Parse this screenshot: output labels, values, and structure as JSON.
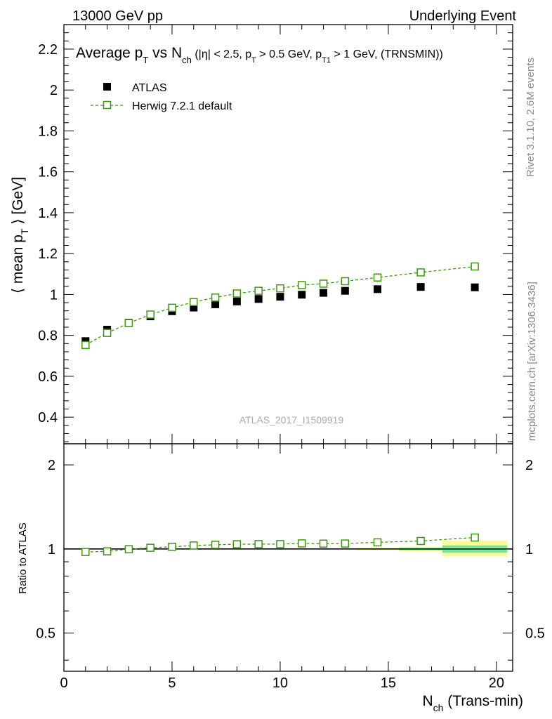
{
  "header": {
    "energy_label": "13000 GeV pp",
    "process_label": "Underlying Event"
  },
  "side_text": {
    "rivet_label": "Rivet 3.1.10,  2.6M events",
    "mcplots_label": "mcplots.cern.ch [arXiv:1306.3436]"
  },
  "analysis_id": "ATLAS_2017_I1509919",
  "colors": {
    "data": "#000000",
    "mc": "#3a9a0a",
    "band_inner": "#7ee89a",
    "band_outer": "#fbf89a"
  },
  "chart_data": [
    {
      "type": "scatter",
      "panel": "main",
      "title_parts": {
        "pre": "Average p",
        "pre_sub": "T",
        "mid": " vs N",
        "mid_sub": "ch",
        "cuts_a": " (|η| < 2.5, p",
        "cuts_a_sub": "T",
        "cuts_b": " > 0.5 GeV, p",
        "cuts_b_sub": "T1",
        "cuts_c": " > 1 GeV, (TRNSMIN))"
      },
      "ylabel_parts": {
        "pre": "⟨ mean p",
        "sub": "T",
        "post": " ⟩ [GeV]"
      },
      "xlim": [
        0,
        20.75
      ],
      "ylim": [
        0.27,
        2.32
      ],
      "yticks": [
        "0.4",
        "0.6",
        "0.8",
        "1",
        "1.2",
        "1.4",
        "1.6",
        "1.8",
        "2",
        "2.2"
      ],
      "legend_position": "top-left",
      "series": [
        {
          "name": "ATLAS",
          "marker": "filled-square",
          "x": [
            1,
            2,
            3,
            4,
            5,
            6,
            7,
            8,
            9,
            10,
            11,
            12,
            13,
            14.5,
            16.5,
            19
          ],
          "y": [
            0.772,
            0.828,
            0.862,
            0.893,
            0.918,
            0.936,
            0.952,
            0.966,
            0.978,
            0.989,
            0.999,
            1.008,
            1.018,
            1.026,
            1.037,
            1.035
          ]
        },
        {
          "name": "Herwig 7.2.1 default",
          "marker": "open-square-dashed-line",
          "x": [
            1,
            2,
            3,
            4,
            5,
            6,
            7,
            8,
            9,
            10,
            11,
            12,
            13,
            14.5,
            16.5,
            19
          ],
          "y": [
            0.753,
            0.812,
            0.86,
            0.902,
            0.935,
            0.963,
            0.985,
            1.005,
            1.018,
            1.03,
            1.046,
            1.053,
            1.065,
            1.083,
            1.108,
            1.137
          ]
        }
      ]
    },
    {
      "type": "line",
      "panel": "ratio",
      "ylabel": "Ratio to ATLAS",
      "xlabel_parts": {
        "pre": "N",
        "sub": "ch",
        "post": " (Trans-min)"
      },
      "xlim": [
        0,
        20.75
      ],
      "ylim": [
        0.365,
        2.38
      ],
      "y_scale": "log",
      "xticks": [
        "0",
        "5",
        "10",
        "15",
        "20"
      ],
      "yticks": [
        "0.5",
        "1",
        "2"
      ],
      "reference_line": 1,
      "bands": {
        "x_edges": [
          [
            13.5,
            15.5
          ],
          [
            15.5,
            17.5
          ],
          [
            17.5,
            20.5
          ]
        ],
        "inner": [
          [
            0.995,
            1.005
          ],
          [
            0.99,
            1.01
          ],
          [
            0.97,
            1.03
          ]
        ],
        "outer": [
          [
            0.99,
            1.01
          ],
          [
            0.98,
            1.02
          ],
          [
            0.94,
            1.07
          ]
        ]
      },
      "series": [
        {
          "name": "Herwig 7.2.1 default",
          "x": [
            1,
            2,
            3,
            4,
            5,
            6,
            7,
            8,
            9,
            10,
            11,
            12,
            13,
            14.5,
            16.5,
            19
          ],
          "y": [
            0.975,
            0.981,
            0.998,
            1.01,
            1.018,
            1.029,
            1.035,
            1.04,
            1.041,
            1.041,
            1.047,
            1.045,
            1.046,
            1.056,
            1.068,
            1.099
          ]
        }
      ]
    }
  ]
}
